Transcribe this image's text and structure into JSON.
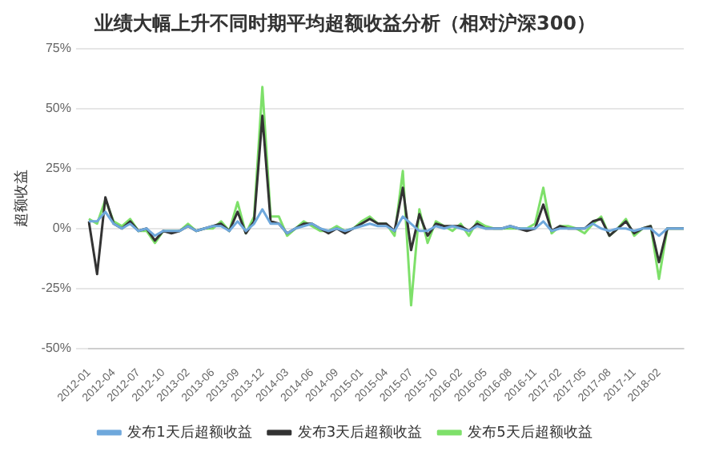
{
  "chart_data": {
    "type": "line",
    "title": "业绩大幅上升不同时期平均超额收益分析（相对沪深300）",
    "ylabel": "超额收益",
    "categories": [
      "2012-01",
      null,
      null,
      "2012-04",
      null,
      null,
      "2012-07",
      null,
      null,
      "2012-10",
      null,
      null,
      "2013-02",
      null,
      null,
      "2013-06",
      null,
      null,
      "2013-09",
      null,
      null,
      "2013-12",
      null,
      null,
      "2014-03",
      null,
      null,
      "2014-06",
      null,
      null,
      "2014-09",
      null,
      null,
      "2015-01",
      null,
      null,
      "2015-04",
      null,
      null,
      "2015-07",
      null,
      null,
      "2015-10",
      null,
      null,
      "2016-02",
      null,
      null,
      "2016-05",
      null,
      null,
      "2016-08",
      null,
      null,
      "2016-11",
      null,
      null,
      "2017-02",
      null,
      null,
      "2017-05",
      null,
      null,
      "2017-08",
      null,
      null,
      "2017-11",
      null,
      null,
      "2018-02",
      null,
      null,
      null
    ],
    "series": [
      {
        "name": "发布1天后超额收益",
        "color": "#6fa8dc",
        "values": [
          3,
          3,
          7,
          2,
          0,
          2,
          -1,
          0,
          -3,
          -1,
          -1,
          -1,
          1,
          -1,
          0,
          1,
          1,
          -1,
          3,
          -1,
          2,
          8,
          2,
          2,
          -2,
          0,
          1,
          2,
          0,
          -1,
          0,
          -1,
          0,
          1,
          2,
          1,
          1,
          -1,
          5,
          2,
          -1,
          -1,
          1,
          0,
          1,
          0,
          -1,
          1,
          0,
          0,
          0,
          1,
          0,
          0,
          0,
          3,
          -1,
          0,
          0,
          0,
          0,
          2,
          0,
          -1,
          0,
          0,
          -1,
          0,
          0,
          -3,
          0,
          0,
          0
        ]
      },
      {
        "name": "发布3天后超额收益",
        "color": "#333333",
        "values": [
          3,
          -19,
          13,
          2,
          0,
          3,
          -1,
          0,
          -5,
          -1,
          -2,
          -1,
          1,
          -1,
          0,
          1,
          2,
          -1,
          7,
          -2,
          3,
          47,
          3,
          2,
          -2,
          0,
          2,
          2,
          0,
          -2,
          0,
          -2,
          0,
          2,
          4,
          2,
          2,
          -1,
          17,
          -9,
          6,
          -3,
          2,
          1,
          1,
          1,
          -1,
          2,
          0,
          0,
          0,
          1,
          0,
          -1,
          0,
          10,
          -1,
          1,
          0,
          0,
          0,
          3,
          4,
          -3,
          0,
          3,
          -2,
          0,
          1,
          -14,
          0,
          0,
          0
        ]
      },
      {
        "name": "发布5天后超额收益",
        "color": "#7ee06a",
        "values": [
          4,
          2,
          12,
          3,
          1,
          4,
          -1,
          -1,
          -6,
          -1,
          -1,
          -1,
          2,
          -1,
          0,
          0,
          3,
          -1,
          11,
          -2,
          5,
          59,
          5,
          5,
          -3,
          0,
          3,
          1,
          -1,
          -1,
          1,
          -1,
          0,
          3,
          5,
          2,
          2,
          -3,
          24,
          -32,
          8,
          -6,
          3,
          1,
          -1,
          2,
          -3,
          3,
          1,
          0,
          0,
          0,
          0,
          0,
          2,
          17,
          -2,
          1,
          1,
          0,
          -2,
          2,
          5,
          -3,
          0,
          4,
          -3,
          0,
          1,
          -21,
          0,
          0,
          0
        ]
      }
    ],
    "ylim": [
      -50,
      75
    ],
    "yticks": [
      {
        "value": -50,
        "label": "-50%"
      },
      {
        "value": -25,
        "label": "-25%"
      },
      {
        "value": 0,
        "label": "0%"
      },
      {
        "value": 25,
        "label": "25%"
      },
      {
        "value": 50,
        "label": "50%"
      },
      {
        "value": 75,
        "label": "75%"
      }
    ],
    "grid": "y",
    "legend": "bottom",
    "marker": "none",
    "line_style": "solid"
  }
}
